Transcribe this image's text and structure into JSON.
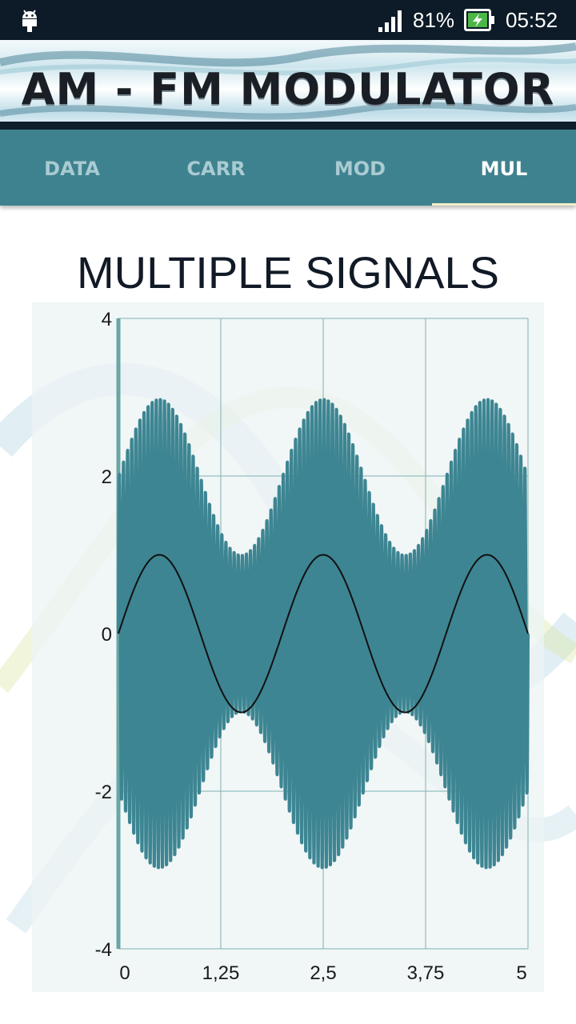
{
  "status_bar": {
    "battery_percent": "81%",
    "time": "05:52",
    "icons": [
      "android-icon",
      "signal-icon",
      "battery-charging-icon"
    ]
  },
  "banner": {
    "title": "AM - FM MODULATOR"
  },
  "tabs": [
    {
      "label": "DATA",
      "active": false
    },
    {
      "label": "CARR",
      "active": false
    },
    {
      "label": "MOD",
      "active": false
    },
    {
      "label": "MUL",
      "active": true
    }
  ],
  "page": {
    "title": "MULTIPLE SIGNALS"
  },
  "colors": {
    "accent": "#3f828f",
    "signal": "#3d8592",
    "modulating": "#111111",
    "grid": "#7fb3b0"
  },
  "chart_data": {
    "type": "line",
    "title": "",
    "xlabel": "",
    "ylabel": "",
    "xlim": [
      0,
      5
    ],
    "ylim": [
      -4,
      4
    ],
    "x_ticks": [
      "0",
      "1,25",
      "2,5",
      "3,75",
      "5"
    ],
    "y_ticks": [
      "4",
      "2",
      "0",
      "-2",
      "-4"
    ],
    "grid": true,
    "series": [
      {
        "role": "modulated signal",
        "color": "#3d8592",
        "formula": "(2 + sin(2*pi*0.5*x)) * sin(2*pi*20*x)",
        "envelope_peak": 3,
        "envelope_min": 1,
        "carrier_frequency": 20,
        "x": [
          0,
          0.5,
          1,
          1.5,
          2,
          2.5,
          3,
          3.5,
          4,
          4.5,
          5
        ],
        "envelope": [
          2,
          3,
          2,
          1,
          2,
          3,
          2,
          1,
          2,
          3,
          2
        ]
      },
      {
        "role": "modulating signal",
        "color": "#111111",
        "formula": "sin(2*pi*0.5*x)",
        "amplitude": 1,
        "frequency": 0.5,
        "x": [
          0,
          0.5,
          1,
          1.5,
          2,
          2.5,
          3,
          3.5,
          4,
          4.5,
          5
        ],
        "y": [
          0,
          1,
          0,
          -1,
          0,
          1,
          0,
          -1,
          0,
          1,
          0
        ]
      }
    ]
  }
}
